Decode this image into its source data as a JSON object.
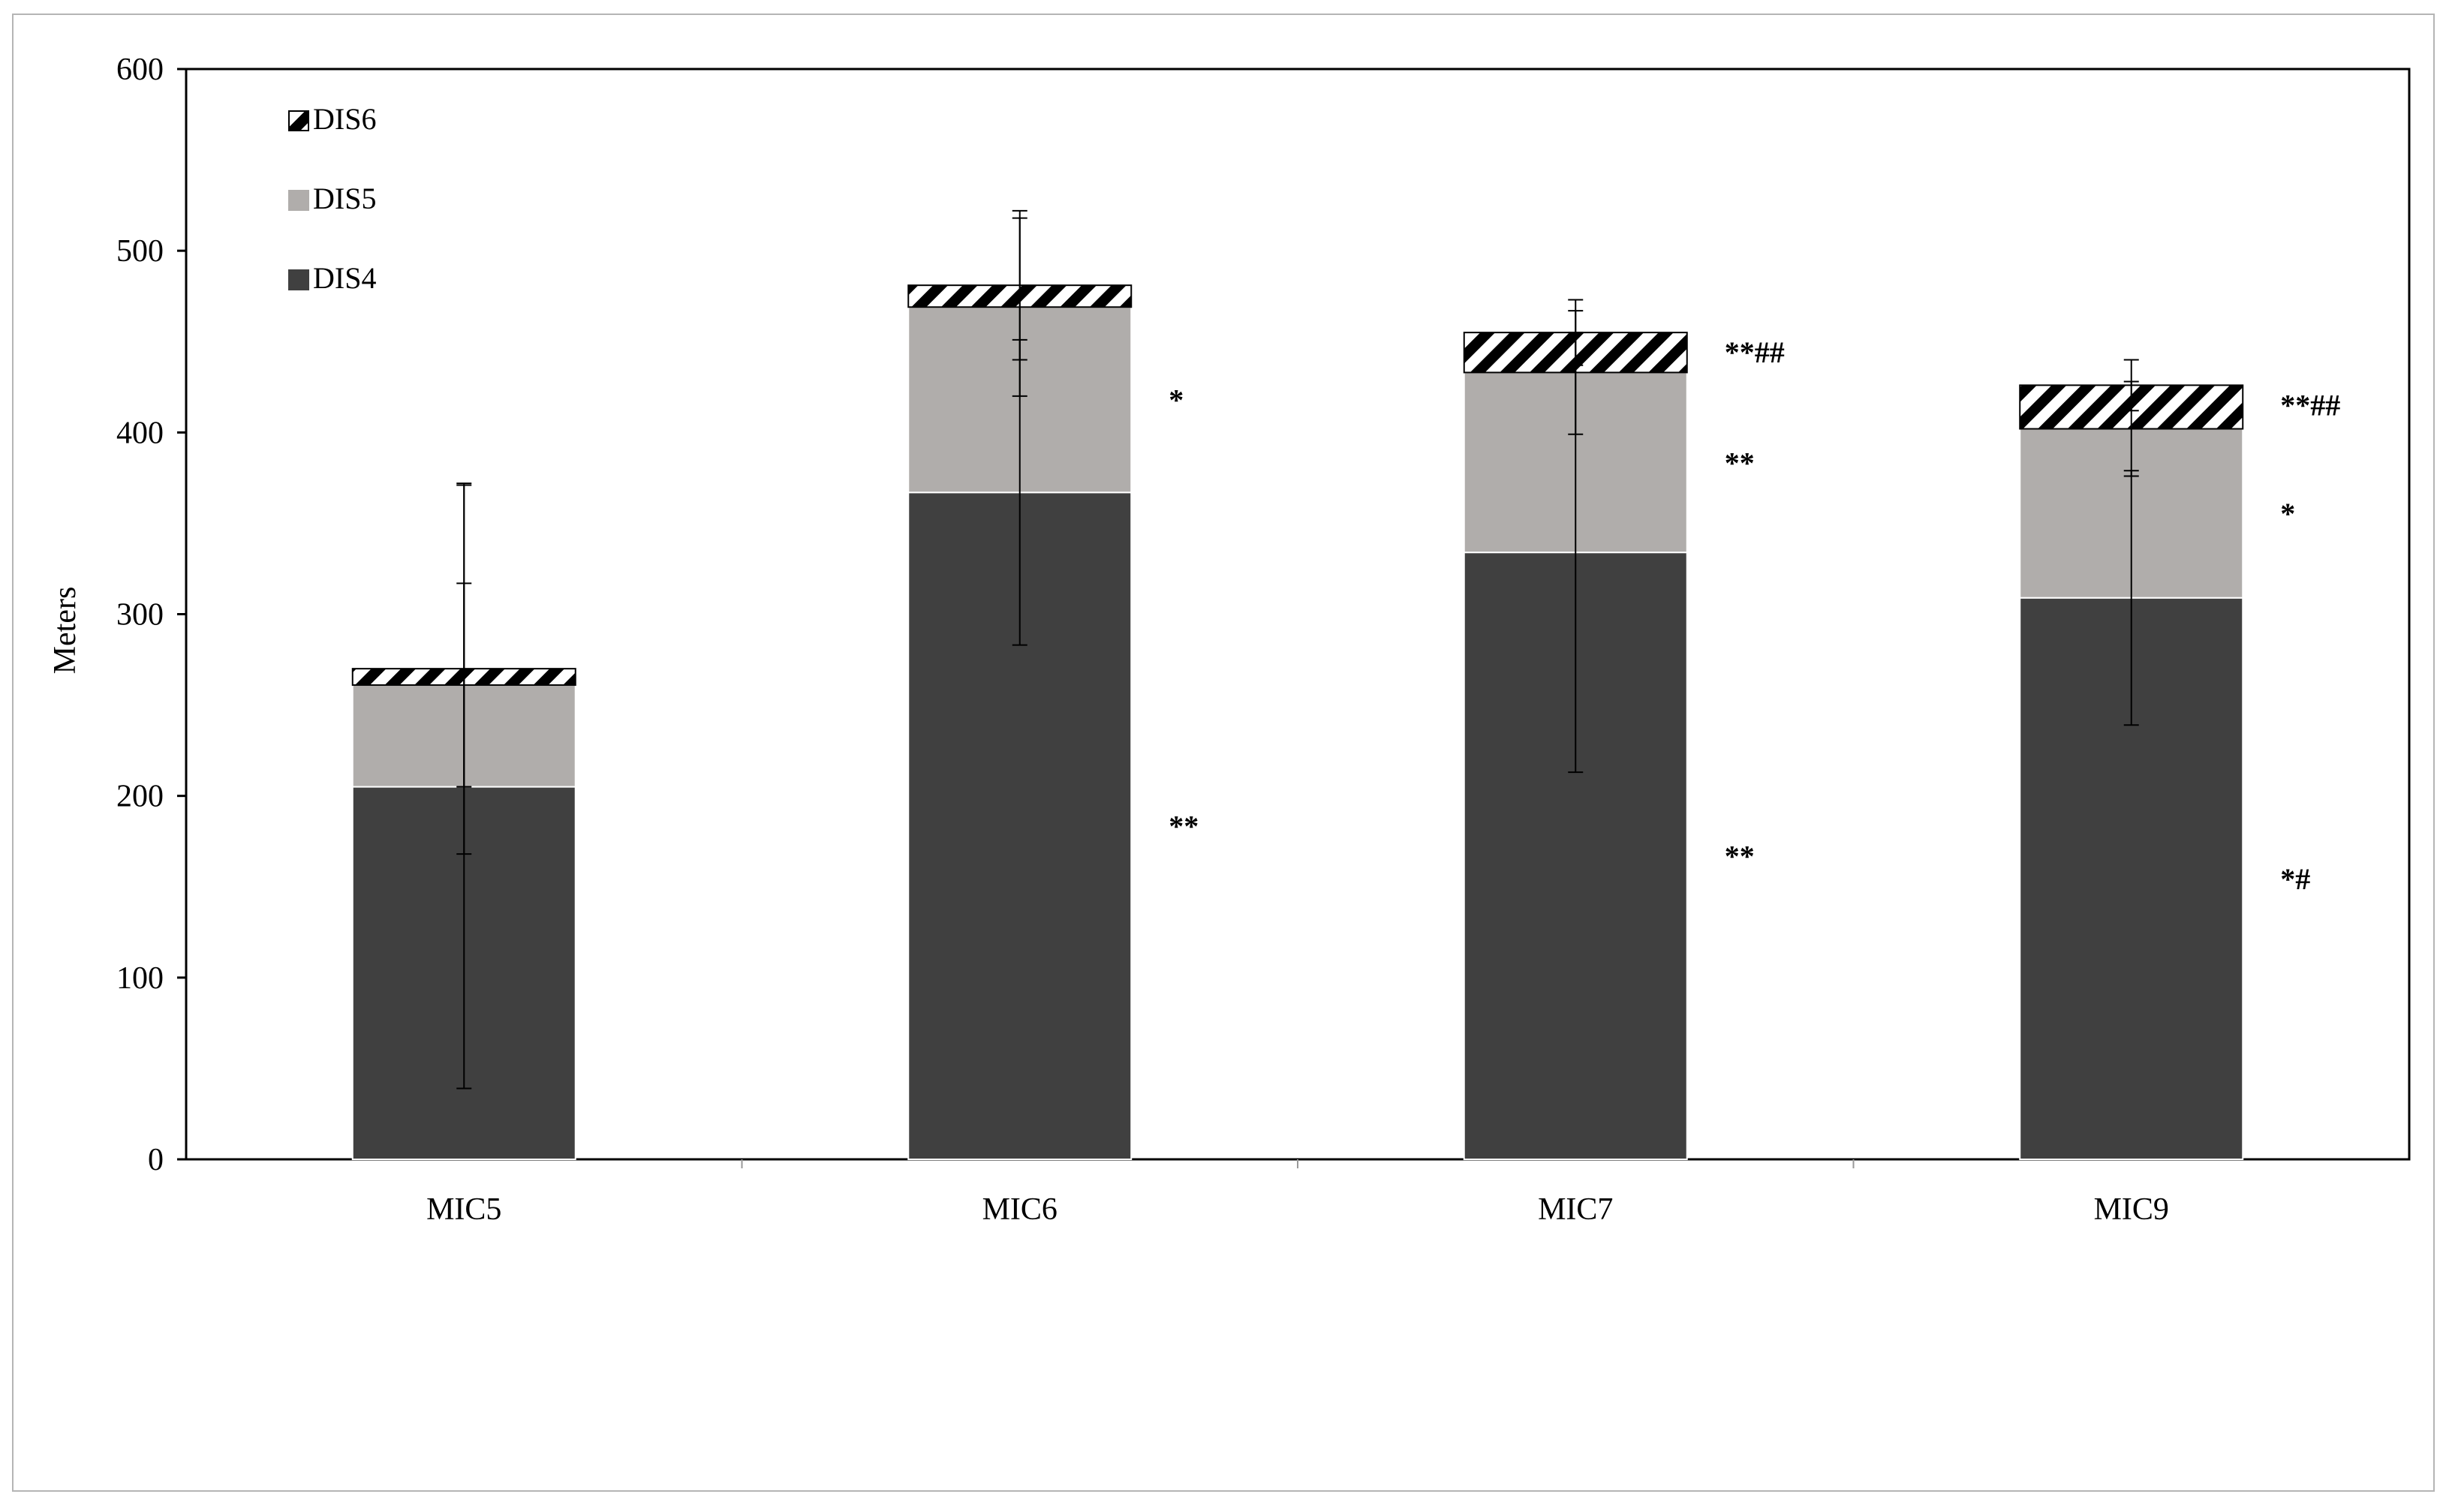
{
  "chart_data": {
    "type": "bar",
    "stacked": true,
    "categories": [
      "MIC5",
      "MIC6",
      "MIC7",
      "MIC9"
    ],
    "ylabel": "Meters",
    "ylim": [
      0,
      600
    ],
    "yticks": [
      0,
      100,
      200,
      300,
      400,
      500,
      600
    ],
    "grid": false,
    "legend": "top-left",
    "series": [
      {
        "name": "DIS4",
        "values": [
          205,
          367,
          334,
          309
        ],
        "error": [
          166,
          84,
          121,
          70
        ],
        "significance": [
          "",
          "**",
          "**",
          "*#"
        ],
        "color": "#404040",
        "pattern": "solid"
      },
      {
        "name": "DIS5",
        "values": [
          56,
          102,
          99,
          93
        ],
        "error": [
          56,
          49,
          34,
          26
        ],
        "significance": [
          "",
          "*",
          "**",
          "*"
        ],
        "color": "#b0adab",
        "pattern": "solid"
      },
      {
        "name": "DIS6",
        "values": [
          9,
          12,
          22,
          24
        ],
        "error": [
          102,
          41,
          18,
          14
        ],
        "significance": [
          "",
          "",
          "**##",
          "**##"
        ],
        "color": "#000000",
        "pattern": "diagonal-stripes"
      }
    ]
  }
}
